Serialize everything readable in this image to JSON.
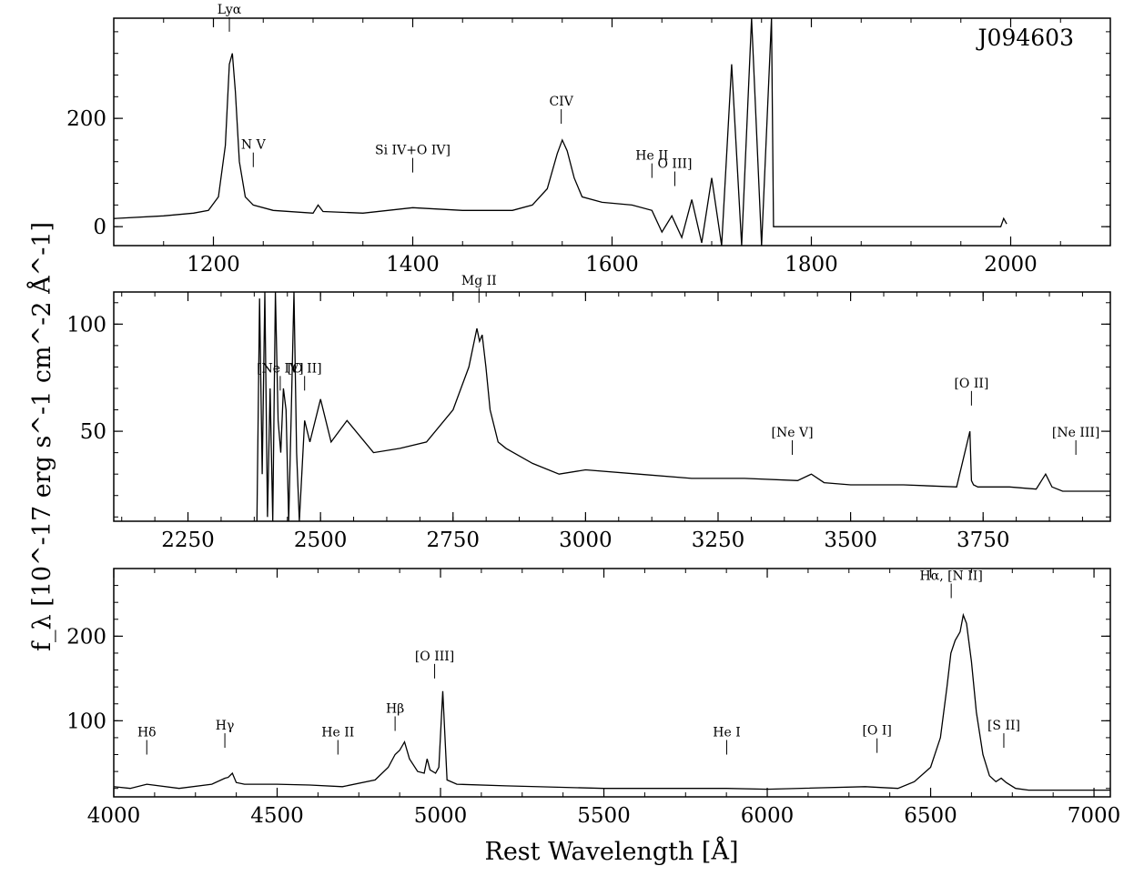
{
  "figure": {
    "object_name": "J094603",
    "xlabel": "Rest Wavelength [Å]",
    "ylabel": "f_λ [10^-17 erg s^-1 cm^-2 Å^-1]"
  },
  "chart_data": [
    {
      "type": "line",
      "title": "",
      "xlim": [
        1100,
        2100
      ],
      "ylim": [
        -35,
        385
      ],
      "xticks": [
        1200,
        1400,
        1600,
        1800,
        2000
      ],
      "yticks": [
        0,
        200
      ],
      "series": [
        {
          "x": [
            1100,
            1150,
            1180,
            1195,
            1205,
            1212,
            1216,
            1219,
            1222,
            1226,
            1232,
            1240,
            1260,
            1300,
            1305,
            1310,
            1350,
            1400,
            1450,
            1500,
            1520,
            1535,
            1545,
            1550,
            1555,
            1562,
            1570,
            1590,
            1620,
            1640,
            1650,
            1660,
            1670,
            1680,
            1690,
            1700,
            1710,
            1720,
            1730,
            1740,
            1750,
            1760,
            1762,
            1900,
            1990,
            1993,
            1996
          ],
          "y": [
            15,
            20,
            25,
            30,
            55,
            150,
            300,
            320,
            250,
            120,
            55,
            40,
            30,
            25,
            40,
            28,
            25,
            35,
            30,
            30,
            40,
            70,
            135,
            160,
            140,
            90,
            55,
            45,
            40,
            30,
            -10,
            20,
            -20,
            50,
            -30,
            90,
            -35,
            300,
            -35,
            385,
            -35,
            385,
            0,
            0,
            0,
            15,
            5
          ]
        }
      ],
      "annotations": [
        {
          "text": "Lyα",
          "x": 1216,
          "y": 360
        },
        {
          "text": "N V",
          "x": 1240,
          "y": 110
        },
        {
          "text": "Si IV+O IV]",
          "x": 1400,
          "y": 100
        },
        {
          "text": "CIV",
          "x": 1549,
          "y": 190
        },
        {
          "text": "He II",
          "x": 1640,
          "y": 90
        },
        {
          "text": "O III]",
          "x": 1663,
          "y": 75
        }
      ]
    },
    {
      "type": "line",
      "title": "",
      "xlim": [
        2110,
        3990
      ],
      "ylim": [
        8,
        115
      ],
      "xticks": [
        2250,
        2500,
        2750,
        3000,
        3250,
        3500,
        3750
      ],
      "yticks": [
        50,
        100
      ],
      "series": [
        {
          "x": [
            2380,
            2385,
            2390,
            2395,
            2400,
            2405,
            2410,
            2415,
            2420,
            2425,
            2430,
            2435,
            2440,
            2445,
            2450,
            2455,
            2460,
            2470,
            2480,
            2500,
            2520,
            2550,
            2600,
            2650,
            2700,
            2750,
            2780,
            2795,
            2800,
            2805,
            2812,
            2820,
            2835,
            2850,
            2900,
            2950,
            3000,
            3100,
            3200,
            3300,
            3400,
            3426,
            3450,
            3500,
            3600,
            3700,
            3725,
            3728,
            3732,
            3740,
            3800,
            3850,
            3868,
            3880,
            3900,
            3990
          ],
          "y": [
            8,
            112,
            30,
            115,
            10,
            70,
            8,
            115,
            55,
            40,
            70,
            60,
            8,
            60,
            115,
            40,
            8,
            55,
            45,
            65,
            45,
            55,
            40,
            42,
            45,
            60,
            80,
            98,
            92,
            95,
            80,
            60,
            45,
            42,
            35,
            30,
            32,
            30,
            28,
            28,
            27,
            30,
            26,
            25,
            25,
            24,
            50,
            27,
            25,
            24,
            24,
            23,
            30,
            24,
            22,
            22
          ]
        }
      ],
      "annotations": [
        {
          "text": "[Ne IV]",
          "x": 2424,
          "y": 69
        },
        {
          "text": "[O II]",
          "x": 2470,
          "y": 69
        },
        {
          "text": "Mg II",
          "x": 2799,
          "y": 110
        },
        {
          "text": "[Ne V]",
          "x": 3390,
          "y": 39
        },
        {
          "text": "[O II]",
          "x": 3728,
          "y": 62
        },
        {
          "text": "[Ne III]",
          "x": 3925,
          "y": 39
        }
      ]
    },
    {
      "type": "line",
      "title": "",
      "xlim": [
        4000,
        7050
      ],
      "ylim": [
        10,
        280
      ],
      "xticks": [
        4000,
        4500,
        5000,
        5500,
        6000,
        6500,
        7000
      ],
      "yticks": [
        100,
        200
      ],
      "series": [
        {
          "x": [
            4000,
            4050,
            4101,
            4200,
            4300,
            4340,
            4350,
            4363,
            4375,
            4400,
            4500,
            4600,
            4700,
            4800,
            4840,
            4861,
            4875,
            4890,
            4905,
            4930,
            4950,
            4959,
            4968,
            4985,
            4995,
            5007,
            5020,
            5050,
            5200,
            5500,
            5876,
            6000,
            6300,
            6400,
            6450,
            6500,
            6530,
            6550,
            6562,
            6575,
            6590,
            6600,
            6610,
            6625,
            6640,
            6660,
            6680,
            6700,
            6716,
            6731,
            6760,
            6800,
            6900,
            7050
          ],
          "y": [
            22,
            20,
            25,
            20,
            25,
            32,
            33,
            38,
            27,
            25,
            25,
            24,
            22,
            30,
            45,
            60,
            65,
            75,
            55,
            40,
            38,
            55,
            42,
            38,
            45,
            135,
            30,
            25,
            23,
            20,
            20,
            19,
            22,
            20,
            28,
            45,
            80,
            140,
            180,
            195,
            205,
            225,
            215,
            170,
            110,
            60,
            35,
            28,
            32,
            27,
            20,
            18,
            18,
            18
          ]
        }
      ],
      "annotations": [
        {
          "text": "Hδ",
          "x": 4101,
          "y": 60
        },
        {
          "text": "Hγ",
          "x": 4340,
          "y": 68
        },
        {
          "text": "He II",
          "x": 4686,
          "y": 60
        },
        {
          "text": "Hβ",
          "x": 4861,
          "y": 88
        },
        {
          "text": "[O III]",
          "x": 4982,
          "y": 150
        },
        {
          "text": "He I",
          "x": 5876,
          "y": 60
        },
        {
          "text": "[O I]",
          "x": 6336,
          "y": 62
        },
        {
          "text": "Hα, [N II]",
          "x": 6563,
          "y": 245
        },
        {
          "text": "[S II]",
          "x": 6724,
          "y": 68
        }
      ]
    }
  ]
}
